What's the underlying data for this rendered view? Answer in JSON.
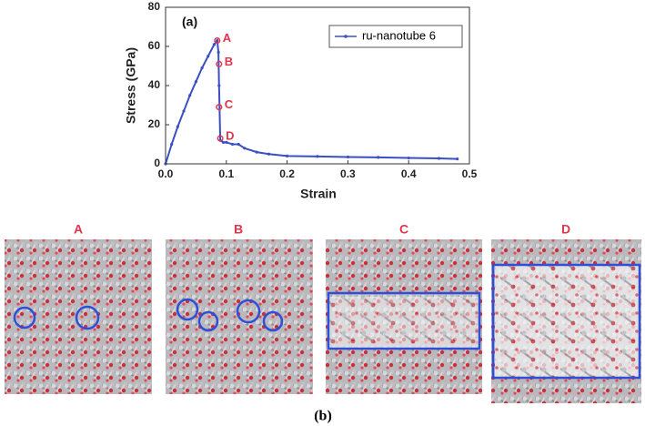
{
  "chart_data": {
    "type": "line",
    "panel_label": "(a)",
    "x_label": "Strain",
    "y_label": "Stress (GPa)",
    "x": [
      0,
      0.01,
      0.02,
      0.03,
      0.04,
      0.05,
      0.06,
      0.07,
      0.08,
      0.085,
      0.087,
      0.088,
      0.09,
      0.095,
      0.1,
      0.11,
      0.12,
      0.13,
      0.15,
      0.17,
      0.2,
      0.25,
      0.3,
      0.35,
      0.4,
      0.45,
      0.48
    ],
    "series": [
      {
        "name": "ru-nanotube 6",
        "color": "#3b4fc4",
        "values": [
          0,
          10,
          19,
          27,
          35,
          42,
          49,
          55,
          61,
          63,
          57,
          40,
          12,
          11,
          11,
          10,
          10,
          8,
          6,
          5,
          4,
          3.8,
          3.5,
          3.3,
          3,
          2.8,
          2.5
        ]
      }
    ],
    "annotations": [
      {
        "label": "A",
        "x": 0.085,
        "y": 63
      },
      {
        "label": "B",
        "x": 0.088,
        "y": 51
      },
      {
        "label": "C",
        "x": 0.088,
        "y": 29
      },
      {
        "label": "D",
        "x": 0.09,
        "y": 13
      }
    ],
    "xlim": [
      0,
      0.5
    ],
    "ylim": [
      0,
      80
    ],
    "xticks": [
      {
        "value": 0,
        "label": "0.0"
      },
      0.1,
      0.2,
      0.3,
      0.4,
      0.5
    ],
    "yticks": [
      0,
      20,
      40,
      60,
      80
    ],
    "legend": "upper right"
  },
  "structures": {
    "label": "(b)",
    "panels": [
      "A",
      "B",
      "C",
      "D"
    ]
  }
}
